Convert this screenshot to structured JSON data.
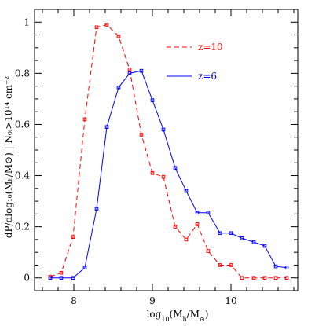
{
  "chart_data": {
    "type": "line",
    "xlabel_main": "log",
    "xlabel_sub": "10",
    "xlabel_rest": "(M",
    "xlabel_sub2": "h",
    "xlabel_mid": "/M",
    "xlabel_sub3": "⊙",
    "xlabel_end": ")",
    "ylabel": "dP/dlog₁₀(Mₕ/M⊙) | N₀ᵢ>10¹⁴ cm⁻²",
    "xlim": [
      7.5,
      10.85
    ],
    "ylim": [
      -0.05,
      1.05
    ],
    "xticks": [
      8,
      9,
      10
    ],
    "xtick_labels": [
      "8",
      "9",
      "10"
    ],
    "yticks": [
      0,
      0.2,
      0.4,
      0.6,
      0.8,
      1.0
    ],
    "ytick_labels": [
      "0",
      "0.2",
      "0.4",
      "0.6",
      "0.8",
      "1"
    ],
    "legend_position": "top-right",
    "grid": false,
    "series": [
      {
        "name": "z=10",
        "color": "#ff0000",
        "dash": "dashed",
        "x": [
          7.7,
          7.84,
          7.99,
          8.14,
          8.29,
          8.42,
          8.57,
          8.71,
          8.86,
          9.0,
          9.14,
          9.29,
          9.43,
          9.57,
          9.71,
          9.86,
          10.0,
          10.14,
          10.29,
          10.43,
          10.57,
          10.71
        ],
        "y": [
          0.005,
          0.02,
          0.16,
          0.62,
          0.98,
          0.99,
          0.945,
          0.815,
          0.56,
          0.41,
          0.395,
          0.2,
          0.15,
          0.21,
          0.105,
          0.05,
          0.05,
          0.0,
          0.0,
          0.0,
          0.0,
          0.0
        ]
      },
      {
        "name": "z=6",
        "color": "#0000ff",
        "dash": "solid",
        "x": [
          7.7,
          7.84,
          7.99,
          8.14,
          8.29,
          8.42,
          8.57,
          8.71,
          8.86,
          9.0,
          9.14,
          9.29,
          9.43,
          9.57,
          9.71,
          9.86,
          10.0,
          10.14,
          10.29,
          10.43,
          10.57,
          10.71
        ],
        "y": [
          0.0,
          0.0,
          0.0,
          0.04,
          0.27,
          0.59,
          0.745,
          0.8,
          0.81,
          0.695,
          0.58,
          0.43,
          0.34,
          0.255,
          0.255,
          0.175,
          0.175,
          0.155,
          0.14,
          0.125,
          0.045,
          0.04
        ]
      }
    ]
  }
}
